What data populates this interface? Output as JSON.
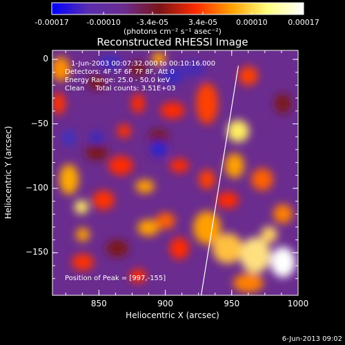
{
  "chart_data": {
    "type": "heatmap",
    "title": "Reconstructed RHESSI Image",
    "xlabel": "Heliocentric X (arcsec)",
    "ylabel": "Heliocentric Y (arcsec)",
    "xlim": [
      815,
      1000
    ],
    "ylim": [
      -183,
      7
    ],
    "x_ticks": [
      850,
      900,
      950,
      1000
    ],
    "y_ticks": [
      0,
      -50,
      -100,
      -150
    ],
    "colorbar": {
      "ticks": [
        "-0.00017",
        "-0.00010",
        "-3.4e-05",
        "3.4e-05",
        "0.00010",
        "0.00017"
      ],
      "tick_values": [
        -0.00017,
        -0.0001,
        -3.4e-05,
        3.4e-05,
        0.0001,
        0.00017
      ],
      "units": "(photons cm⁻² s⁻¹ asec⁻²)",
      "colors": [
        "#0000ff",
        "#5a2db0",
        "#6a2c8e",
        "#7a1418",
        "#ff2a00",
        "#ffa000",
        "#ffff80",
        "#ffffff"
      ]
    },
    "annotations": {
      "time": "1-Jun-2003 00:07:32.000 to 00:10:16.000",
      "detectors": "Detectors: 4F 5F 6F 7F 8F, Att 0",
      "energy": "Energy Range: 25.0 - 50.0 keV",
      "method": "Clean     Total counts: 3.51E+03",
      "peak": "Position of Peak = [997,-155]"
    },
    "limb_line": {
      "x": [
        955,
        927
      ],
      "y": [
        -5,
        -183
      ]
    },
    "peak": [
      997,
      -155
    ]
  },
  "footer": "6-Jun-2013 09:02"
}
